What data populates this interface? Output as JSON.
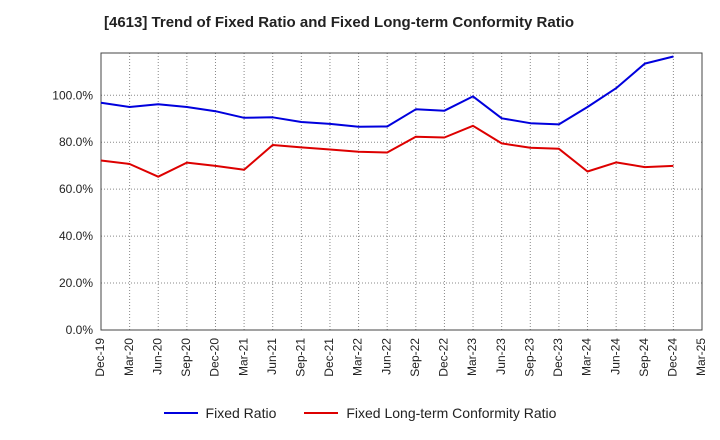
{
  "chart_data": {
    "type": "line",
    "title": "[4613]  Trend of Fixed Ratio and Fixed Long-term Conformity Ratio",
    "categories": [
      "Dec-19",
      "Mar-20",
      "Jun-20",
      "Sep-20",
      "Dec-20",
      "Mar-21",
      "Jun-21",
      "Sep-21",
      "Dec-21",
      "Mar-22",
      "Jun-22",
      "Sep-22",
      "Dec-22",
      "Mar-23",
      "Jun-23",
      "Sep-23",
      "Dec-23",
      "Mar-24",
      "Jun-24",
      "Sep-24",
      "Dec-24",
      "Mar-25"
    ],
    "y_ticks": [
      "0.0%",
      "20.0%",
      "40.0%",
      "60.0%",
      "80.0%",
      "100.0%"
    ],
    "ylim": [
      0,
      118
    ],
    "grid": true,
    "legend_position": "bottom",
    "series": [
      {
        "name": "Fixed Ratio",
        "color": "#0000dd",
        "values": [
          96.8,
          95.0,
          96.2,
          95.0,
          93.2,
          90.4,
          90.6,
          88.6,
          87.8,
          86.6,
          86.7,
          94.0,
          93.4,
          99.5,
          90.2,
          88.1,
          87.6,
          95.0,
          103.0,
          113.5,
          116.5,
          null
        ]
      },
      {
        "name": "Fixed Long-term Conformity Ratio",
        "color": "#dd0000",
        "values": [
          72.2,
          70.7,
          65.3,
          71.3,
          69.9,
          68.3,
          78.8,
          77.8,
          76.9,
          75.9,
          75.6,
          82.3,
          82.0,
          87.0,
          79.5,
          77.6,
          77.2,
          67.5,
          71.4,
          69.4,
          69.9,
          null
        ]
      }
    ]
  }
}
